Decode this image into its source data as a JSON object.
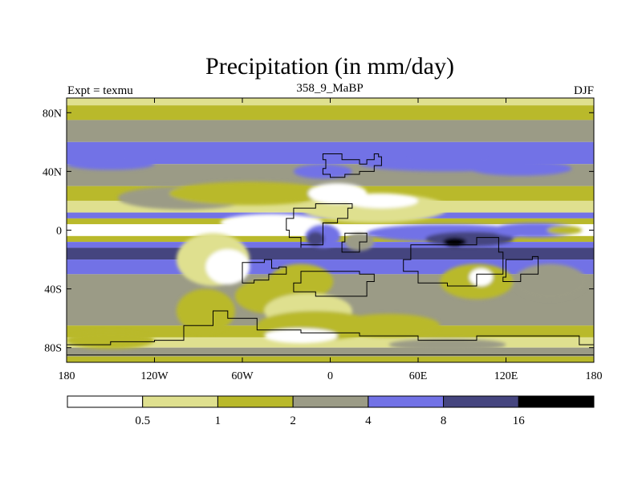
{
  "chart_data": {
    "type": "heatmap",
    "title": "Precipitation (in mm/day)",
    "subtitle": "358_9_MaBP",
    "left_label": "Expt = texmu",
    "right_label": "DJF",
    "units": "mm/day",
    "xlim": [
      -180,
      180
    ],
    "ylim": [
      -90,
      90
    ],
    "x_ticks": [
      {
        "value": -180,
        "label": "180"
      },
      {
        "value": -120,
        "label": "120W"
      },
      {
        "value": -60,
        "label": "60W"
      },
      {
        "value": 0,
        "label": "0"
      },
      {
        "value": 60,
        "label": "60E"
      },
      {
        "value": 120,
        "label": "120E"
      },
      {
        "value": 180,
        "label": "180"
      }
    ],
    "y_ticks": [
      {
        "value": 80,
        "label": "80N"
      },
      {
        "value": 40,
        "label": "40N"
      },
      {
        "value": 0,
        "label": "0"
      },
      {
        "value": -40,
        "label": "40S"
      },
      {
        "value": -80,
        "label": "80S"
      }
    ],
    "levels": [
      "0.5",
      "1",
      "2",
      "4",
      "8",
      "16"
    ],
    "colors": [
      "#ffffff",
      "#dfe08f",
      "#b9b92b",
      "#9b9b86",
      "#7272e6",
      "#45457f",
      "#000000"
    ],
    "zonal_bands": [
      {
        "lat": [
          85,
          90
        ],
        "class": 1
      },
      {
        "lat": [
          75,
          85
        ],
        "class": 2
      },
      {
        "lat": [
          60,
          75
        ],
        "class": 3
      },
      {
        "lat": [
          45,
          60
        ],
        "class": 4
      },
      {
        "lat": [
          30,
          45
        ],
        "class": 3
      },
      {
        "lat": [
          20,
          30
        ],
        "class": 2
      },
      {
        "lat": [
          12,
          20
        ],
        "class": 1
      },
      {
        "lat": [
          8,
          12
        ],
        "class": 4
      },
      {
        "lat": [
          4,
          8
        ],
        "class": 2
      },
      {
        "lat": [
          -4,
          4
        ],
        "class": 0
      },
      {
        "lat": [
          -8,
          -4
        ],
        "class": 2
      },
      {
        "lat": [
          -12,
          -8
        ],
        "class": 4
      },
      {
        "lat": [
          -20,
          -12
        ],
        "class": 5
      },
      {
        "lat": [
          -30,
          -20
        ],
        "class": 4
      },
      {
        "lat": [
          -65,
          -30
        ],
        "class": 3
      },
      {
        "lat": [
          -73,
          -65
        ],
        "class": 2
      },
      {
        "lat": [
          -80,
          -73
        ],
        "class": 1
      },
      {
        "lat": [
          -86,
          -80
        ],
        "class": 3
      },
      {
        "lat": [
          -90,
          -86
        ],
        "class": 2
      }
    ],
    "patches": [
      {
        "center": [
          -150,
          45
        ],
        "radius": [
          30,
          4
        ],
        "class": 4
      },
      {
        "center": [
          -5,
          40
        ],
        "radius": [
          20,
          5
        ],
        "class": 4
      },
      {
        "center": [
          80,
          45
        ],
        "radius": [
          60,
          5
        ],
        "class": 4
      },
      {
        "center": [
          130,
          42
        ],
        "radius": [
          35,
          5
        ],
        "class": 4
      },
      {
        "center": [
          -100,
          22
        ],
        "radius": [
          45,
          8
        ],
        "class": 3
      },
      {
        "center": [
          -55,
          25
        ],
        "radius": [
          55,
          8
        ],
        "class": 2
      },
      {
        "center": [
          30,
          15
        ],
        "radius": [
          50,
          10
        ],
        "class": 1
      },
      {
        "center": [
          5,
          25
        ],
        "radius": [
          20,
          7
        ],
        "class": 0
      },
      {
        "center": [
          35,
          20
        ],
        "radius": [
          25,
          5
        ],
        "class": 0
      },
      {
        "center": [
          -40,
          5
        ],
        "radius": [
          35,
          6
        ],
        "class": 0
      },
      {
        "center": [
          -5,
          -4
        ],
        "radius": [
          12,
          8
        ],
        "class": 4
      },
      {
        "center": [
          -10,
          -6
        ],
        "radius": [
          6,
          5
        ],
        "class": 5
      },
      {
        "center": [
          20,
          -8
        ],
        "radius": [
          10,
          6
        ],
        "class": 3
      },
      {
        "center": [
          80,
          -2
        ],
        "radius": [
          55,
          6
        ],
        "class": 4
      },
      {
        "center": [
          95,
          -6
        ],
        "radius": [
          30,
          5
        ],
        "class": 5
      },
      {
        "center": [
          140,
          0
        ],
        "radius": [
          30,
          5
        ],
        "class": 4
      },
      {
        "center": [
          160,
          0
        ],
        "radius": [
          12,
          3
        ],
        "class": 2
      },
      {
        "center": [
          -80,
          -20
        ],
        "radius": [
          25,
          18
        ],
        "class": 1
      },
      {
        "center": [
          -70,
          -25
        ],
        "radius": [
          15,
          12
        ],
        "class": 0
      },
      {
        "center": [
          -20,
          -35
        ],
        "radius": [
          22,
          12
        ],
        "class": 2
      },
      {
        "center": [
          -40,
          -45
        ],
        "radius": [
          25,
          12
        ],
        "class": 2
      },
      {
        "center": [
          -15,
          -55
        ],
        "radius": [
          30,
          12
        ],
        "class": 1
      },
      {
        "center": [
          -10,
          -65
        ],
        "radius": [
          40,
          10
        ],
        "class": 2
      },
      {
        "center": [
          -20,
          -72
        ],
        "radius": [
          25,
          5
        ],
        "class": 0
      },
      {
        "center": [
          -85,
          -55
        ],
        "radius": [
          20,
          15
        ],
        "class": 2
      },
      {
        "center": [
          100,
          -35
        ],
        "radius": [
          25,
          12
        ],
        "class": 2
      },
      {
        "center": [
          103,
          -32
        ],
        "radius": [
          8,
          6
        ],
        "class": 0
      },
      {
        "center": [
          150,
          -35
        ],
        "radius": [
          25,
          12
        ],
        "class": 3
      },
      {
        "center": [
          40,
          -65
        ],
        "radius": [
          35,
          8
        ],
        "class": 2
      },
      {
        "center": [
          80,
          -78
        ],
        "radius": [
          40,
          4
        ],
        "class": 3
      },
      {
        "center": [
          -150,
          -75
        ],
        "radius": [
          30,
          6
        ],
        "class": 2
      },
      {
        "center": [
          85,
          -8
        ],
        "radius": [
          8,
          3
        ],
        "class": 6
      }
    ],
    "landmasses": [
      [
        [
          -5,
          52
        ],
        [
          5,
          52
        ],
        [
          8,
          48
        ],
        [
          15,
          48
        ],
        [
          20,
          45
        ],
        [
          25,
          48
        ],
        [
          30,
          52
        ],
        [
          33,
          50
        ],
        [
          35,
          44
        ],
        [
          30,
          40
        ],
        [
          20,
          38
        ],
        [
          10,
          36
        ],
        [
          0,
          38
        ],
        [
          -5,
          42
        ],
        [
          -3,
          48
        ]
      ],
      [
        [
          -25,
          15
        ],
        [
          -15,
          15
        ],
        [
          -10,
          18
        ],
        [
          5,
          18
        ],
        [
          15,
          15
        ],
        [
          12,
          8
        ],
        [
          5,
          5
        ],
        [
          -5,
          0
        ],
        [
          -5,
          -10
        ],
        [
          -20,
          -12
        ],
        [
          -20,
          -5
        ],
        [
          -28,
          0
        ],
        [
          -30,
          8
        ]
      ],
      [
        [
          10,
          -2
        ],
        [
          20,
          -2
        ],
        [
          25,
          -8
        ],
        [
          20,
          -15
        ],
        [
          12,
          -15
        ],
        [
          8,
          -8
        ]
      ],
      [
        [
          -60,
          -22
        ],
        [
          -45,
          -20
        ],
        [
          -40,
          -26
        ],
        [
          -35,
          -25
        ],
        [
          -30,
          -30
        ],
        [
          -42,
          -34
        ],
        [
          -52,
          -36
        ],
        [
          -60,
          -32
        ]
      ],
      [
        [
          -20,
          -28
        ],
        [
          0,
          -28
        ],
        [
          20,
          -30
        ],
        [
          30,
          -35
        ],
        [
          25,
          -45
        ],
        [
          10,
          -45
        ],
        [
          -10,
          -42
        ],
        [
          -25,
          -36
        ]
      ],
      [
        [
          55,
          -10
        ],
        [
          80,
          -10
        ],
        [
          100,
          -5
        ],
        [
          115,
          -15
        ],
        [
          118,
          -30
        ],
        [
          100,
          -38
        ],
        [
          80,
          -36
        ],
        [
          60,
          -28
        ],
        [
          50,
          -20
        ]
      ],
      [
        [
          120,
          -20
        ],
        [
          138,
          -18
        ],
        [
          142,
          -30
        ],
        [
          130,
          -35
        ],
        [
          118,
          -32
        ]
      ],
      [
        [
          -120,
          -75
        ],
        [
          -100,
          -65
        ],
        [
          -80,
          -55
        ],
        [
          -70,
          -60
        ],
        [
          -50,
          -68
        ],
        [
          -20,
          -70
        ],
        [
          20,
          -72
        ],
        [
          60,
          -75
        ],
        [
          100,
          -72
        ],
        [
          140,
          -72
        ],
        [
          170,
          -78
        ],
        [
          180,
          -80
        ],
        [
          180,
          -85
        ],
        [
          -180,
          -85
        ],
        [
          -180,
          -78
        ],
        [
          -150,
          -76
        ]
      ]
    ]
  }
}
